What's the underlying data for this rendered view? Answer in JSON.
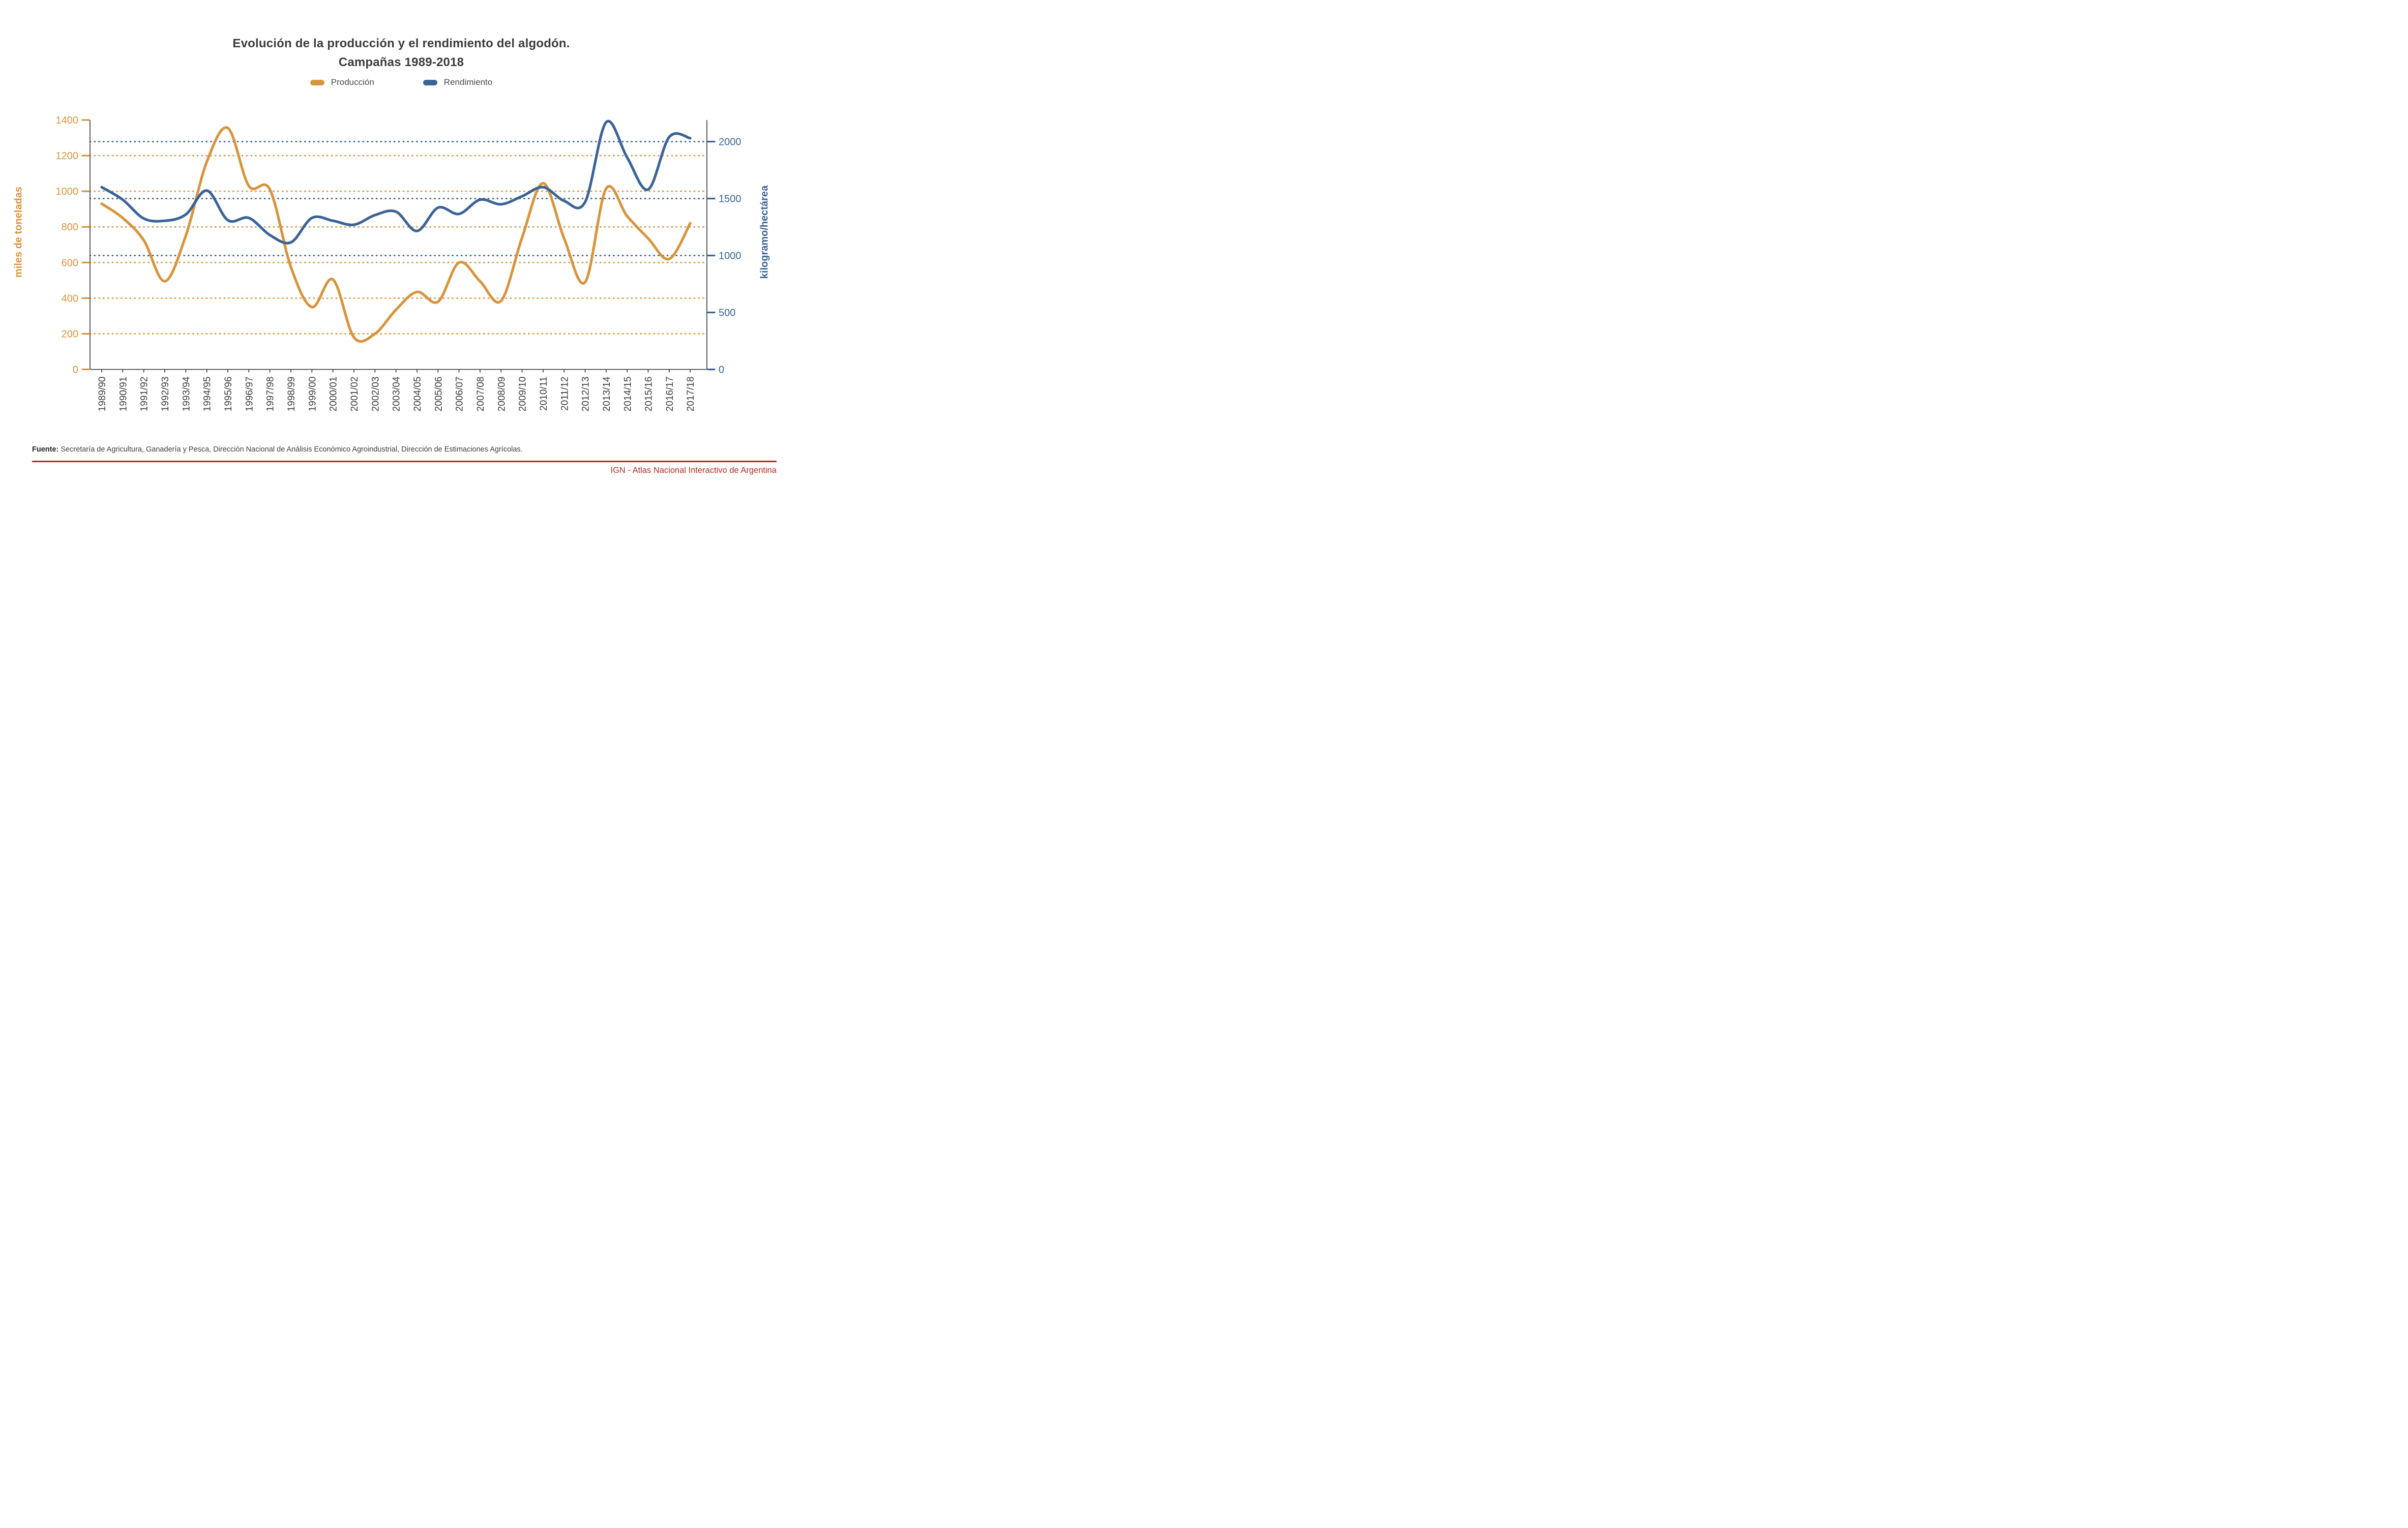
{
  "title": {
    "line1": "Evolución de la producción y el rendimiento del algodón.",
    "line2": "Campañas 1989-2018"
  },
  "legend": [
    {
      "label": "Producción",
      "color": "#D8943D"
    },
    {
      "label": "Rendimiento",
      "color": "#3A6397"
    }
  ],
  "chart_data": {
    "type": "line",
    "smooth": true,
    "grid": "horizontal-dotted",
    "legend_position": "top-center",
    "title": "Evolución de la producción y el rendimiento del algodón. Campañas 1989-2018",
    "categories": [
      "1989/90",
      "1990/91",
      "1991/92",
      "1992/93",
      "1993/94",
      "1994/95",
      "1995/96",
      "1996/97",
      "1997/98",
      "1998/99",
      "1999/00",
      "2000/01",
      "2001/02",
      "2002/03",
      "2003/04",
      "2004/05",
      "2005/06",
      "2006/07",
      "2007/08",
      "2008/09",
      "2009/10",
      "2010/11",
      "2011/12",
      "2012/13",
      "2013/14",
      "2014/15",
      "2015/16",
      "2016/17",
      "2017/18"
    ],
    "series": [
      {
        "name": "Producción",
        "axis": "left",
        "color": "#D8943D",
        "unit": "miles de toneladas",
        "values": [
          930,
          850,
          725,
          495,
          750,
          1165,
          1355,
          1030,
          1010,
          575,
          350,
          505,
          180,
          200,
          335,
          435,
          380,
          600,
          495,
          385,
          740,
          1045,
          735,
          490,
          1015,
          860,
          735,
          620,
          820
        ]
      },
      {
        "name": "Rendimiento",
        "axis": "right",
        "color": "#3A6397",
        "unit": "kilogramo/hectárea",
        "values": [
          1600,
          1490,
          1325,
          1305,
          1360,
          1570,
          1310,
          1330,
          1180,
          1115,
          1330,
          1305,
          1270,
          1355,
          1385,
          1215,
          1420,
          1365,
          1490,
          1450,
          1520,
          1600,
          1480,
          1470,
          2170,
          1860,
          1580,
          2040,
          2030
        ]
      }
    ],
    "left_axis": {
      "label": "miles de toneladas",
      "color": "#D8943D",
      "ticks": [
        0,
        200,
        400,
        600,
        800,
        1000,
        1200,
        1400
      ],
      "range": [
        0,
        1400
      ],
      "gridlines": [
        200,
        400,
        600,
        800,
        1000,
        1200
      ]
    },
    "right_axis": {
      "label": "kilogramo/hectárea",
      "color": "#3A6397",
      "ticks": [
        0,
        500,
        1000,
        1500,
        2000
      ],
      "range": [
        0,
        2000
      ],
      "gridlines": [
        1000,
        1500,
        2000
      ]
    },
    "x_axis": {
      "label_color": "#3f3f3e",
      "axis_color": "#4a4a48"
    }
  },
  "footer": {
    "source_label": "Fuente:",
    "source_text": " Secretaría de Agricultura, Ganadería y Pesca, Dirección Nacional de Análisis Económico Agroindustrial, Dirección de Estimaciones Agrícolas.",
    "credit": "IGN - Atlas Nacional Interactivo de Argentina",
    "accent_color": "#B02E24"
  }
}
